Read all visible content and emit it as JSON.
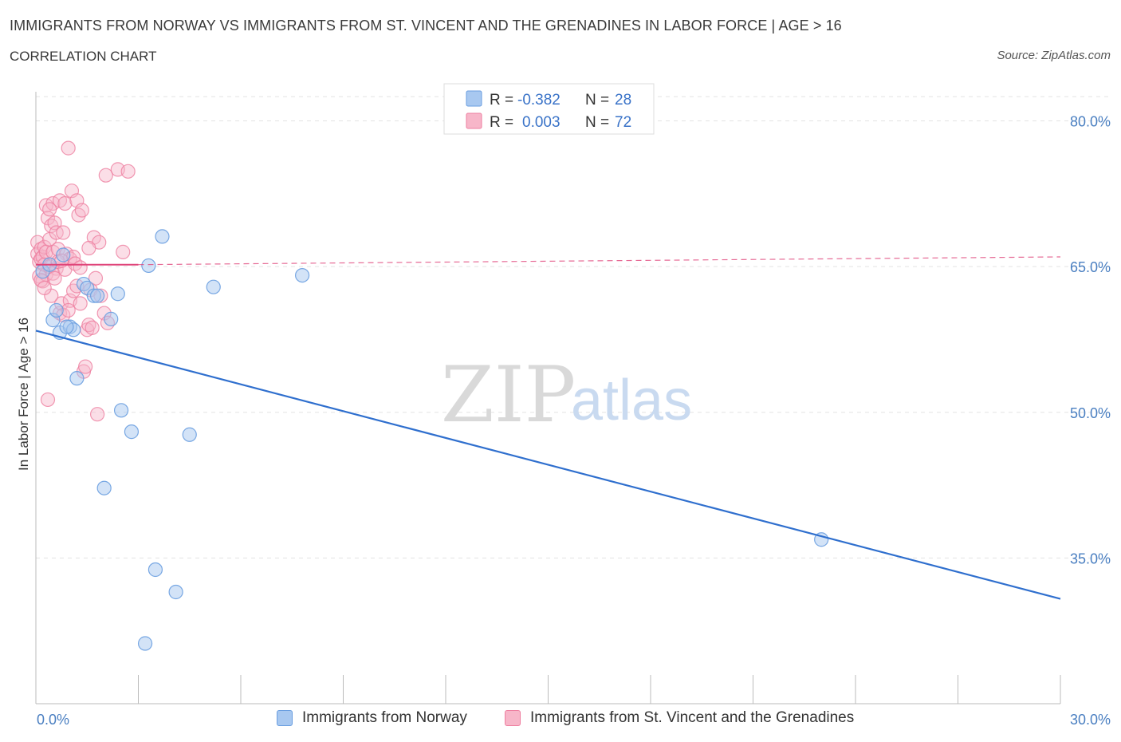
{
  "header": {
    "title": "IMMIGRANTS FROM NORWAY VS IMMIGRANTS FROM ST. VINCENT AND THE GRENADINES IN LABOR FORCE | AGE > 16",
    "subtitle": "CORRELATION CHART",
    "source": "Source: ZipAtlas.com"
  },
  "watermark": {
    "zip": "ZIP",
    "atlas": "atlas"
  },
  "legend": {
    "r_label": "R =",
    "n_label": "N =",
    "norway": {
      "r": "-0.382",
      "n": "28"
    },
    "svg": {
      "r": "0.003",
      "n": "72"
    }
  },
  "colors": {
    "norway_fill": "#a8c8f0",
    "norway_stroke": "#6a9ee0",
    "norway_line": "#2f6fce",
    "svg_fill": "#f7b6c9",
    "svg_stroke": "#ee7fa0",
    "svg_line": "#e0457a",
    "tick": "#4a7fc1",
    "grid": "#e3e3e3"
  },
  "chart_data": {
    "type": "scatter",
    "title": "IMMIGRANTS FROM NORWAY VS IMMIGRANTS FROM ST. VINCENT AND THE GRENADINES IN LABOR FORCE | AGE > 16",
    "xlabel": "",
    "ylabel": "In Labor Force | Age > 16",
    "xlim": [
      0,
      30
    ],
    "ylim": [
      20,
      83
    ],
    "x_tick_labels": [
      "0.0%",
      "30.0%"
    ],
    "y_ticks": [
      35,
      50,
      65,
      80
    ],
    "y_tick_labels": [
      "35.0%",
      "50.0%",
      "65.0%",
      "80.0%"
    ],
    "series": [
      {
        "name": "Immigrants from Norway",
        "r": -0.382,
        "n": 28,
        "trend": {
          "x": [
            0,
            30
          ],
          "y": [
            58.4,
            30.8
          ]
        },
        "points": [
          [
            0.2,
            64.5
          ],
          [
            0.4,
            65.2
          ],
          [
            0.5,
            59.5
          ],
          [
            0.6,
            60.5
          ],
          [
            0.7,
            58.2
          ],
          [
            0.8,
            66.2
          ],
          [
            1.0,
            58.8
          ],
          [
            1.1,
            58.5
          ],
          [
            1.2,
            53.5
          ],
          [
            1.4,
            63.2
          ],
          [
            1.5,
            62.8
          ],
          [
            1.7,
            62.0
          ],
          [
            1.8,
            62.0
          ],
          [
            2.0,
            42.2
          ],
          [
            2.2,
            59.6
          ],
          [
            2.4,
            62.2
          ],
          [
            2.5,
            50.2
          ],
          [
            2.8,
            48.0
          ],
          [
            3.2,
            26.2
          ],
          [
            3.3,
            65.1
          ],
          [
            3.5,
            33.8
          ],
          [
            3.7,
            68.1
          ],
          [
            4.1,
            31.5
          ],
          [
            4.5,
            47.7
          ],
          [
            5.2,
            62.9
          ],
          [
            7.8,
            64.1
          ],
          [
            23.0,
            36.9
          ],
          [
            0.9,
            58.8
          ]
        ]
      },
      {
        "name": "Immigrants from St. Vincent and the Grenadines",
        "r": 0.003,
        "n": 72,
        "trend_solid": {
          "x": [
            0,
            3.0
          ],
          "y": [
            65.2,
            65.2
          ]
        },
        "trend_dashed": {
          "x": [
            3.0,
            30
          ],
          "y": [
            65.2,
            66.0
          ]
        },
        "points": [
          [
            0.05,
            67.5
          ],
          [
            0.05,
            66.3
          ],
          [
            0.1,
            65.5
          ],
          [
            0.1,
            64.0
          ],
          [
            0.15,
            66.8
          ],
          [
            0.15,
            65.8
          ],
          [
            0.2,
            63.5
          ],
          [
            0.2,
            66.0
          ],
          [
            0.25,
            65.2
          ],
          [
            0.25,
            67.0
          ],
          [
            0.3,
            64.2
          ],
          [
            0.3,
            66.5
          ],
          [
            0.3,
            71.3
          ],
          [
            0.35,
            70.0
          ],
          [
            0.35,
            51.3
          ],
          [
            0.4,
            65.0
          ],
          [
            0.4,
            67.8
          ],
          [
            0.45,
            69.2
          ],
          [
            0.5,
            71.5
          ],
          [
            0.5,
            66.5
          ],
          [
            0.55,
            69.5
          ],
          [
            0.6,
            68.5
          ],
          [
            0.6,
            64.8
          ],
          [
            0.65,
            66.8
          ],
          [
            0.7,
            71.8
          ],
          [
            0.7,
            60.2
          ],
          [
            0.75,
            61.2
          ],
          [
            0.8,
            60.0
          ],
          [
            0.8,
            68.5
          ],
          [
            0.85,
            71.5
          ],
          [
            0.9,
            66.3
          ],
          [
            1.0,
            65.8
          ],
          [
            1.0,
            61.5
          ],
          [
            1.05,
            72.8
          ],
          [
            1.1,
            66.0
          ],
          [
            1.1,
            62.5
          ],
          [
            1.2,
            63.0
          ],
          [
            1.2,
            71.8
          ],
          [
            1.25,
            70.3
          ],
          [
            1.3,
            61.2
          ],
          [
            1.35,
            70.8
          ],
          [
            1.4,
            54.2
          ],
          [
            1.45,
            54.7
          ],
          [
            1.5,
            58.5
          ],
          [
            1.55,
            59.0
          ],
          [
            1.6,
            62.6
          ],
          [
            1.65,
            58.7
          ],
          [
            1.7,
            68.0
          ],
          [
            1.75,
            63.8
          ],
          [
            1.8,
            49.8
          ],
          [
            1.85,
            67.5
          ],
          [
            1.9,
            62.0
          ],
          [
            2.0,
            60.2
          ],
          [
            2.05,
            74.4
          ],
          [
            2.1,
            59.2
          ],
          [
            2.4,
            75.0
          ],
          [
            2.55,
            66.5
          ],
          [
            2.7,
            74.8
          ],
          [
            0.95,
            77.2
          ],
          [
            0.15,
            63.6
          ],
          [
            0.5,
            64.3
          ],
          [
            0.65,
            65.5
          ],
          [
            0.85,
            64.7
          ],
          [
            1.15,
            65.3
          ],
          [
            0.45,
            62.0
          ],
          [
            0.55,
            63.8
          ],
          [
            1.3,
            64.9
          ],
          [
            0.95,
            60.5
          ],
          [
            0.25,
            62.8
          ],
          [
            1.55,
            66.9
          ],
          [
            0.4,
            70.9
          ],
          [
            0.75,
            65.6
          ]
        ]
      }
    ]
  },
  "bottom_legend": {
    "norway": "Immigrants from Norway",
    "svg": "Immigrants from St. Vincent and the Grenadines"
  },
  "y_axis_title": "In Labor Force | Age > 16"
}
